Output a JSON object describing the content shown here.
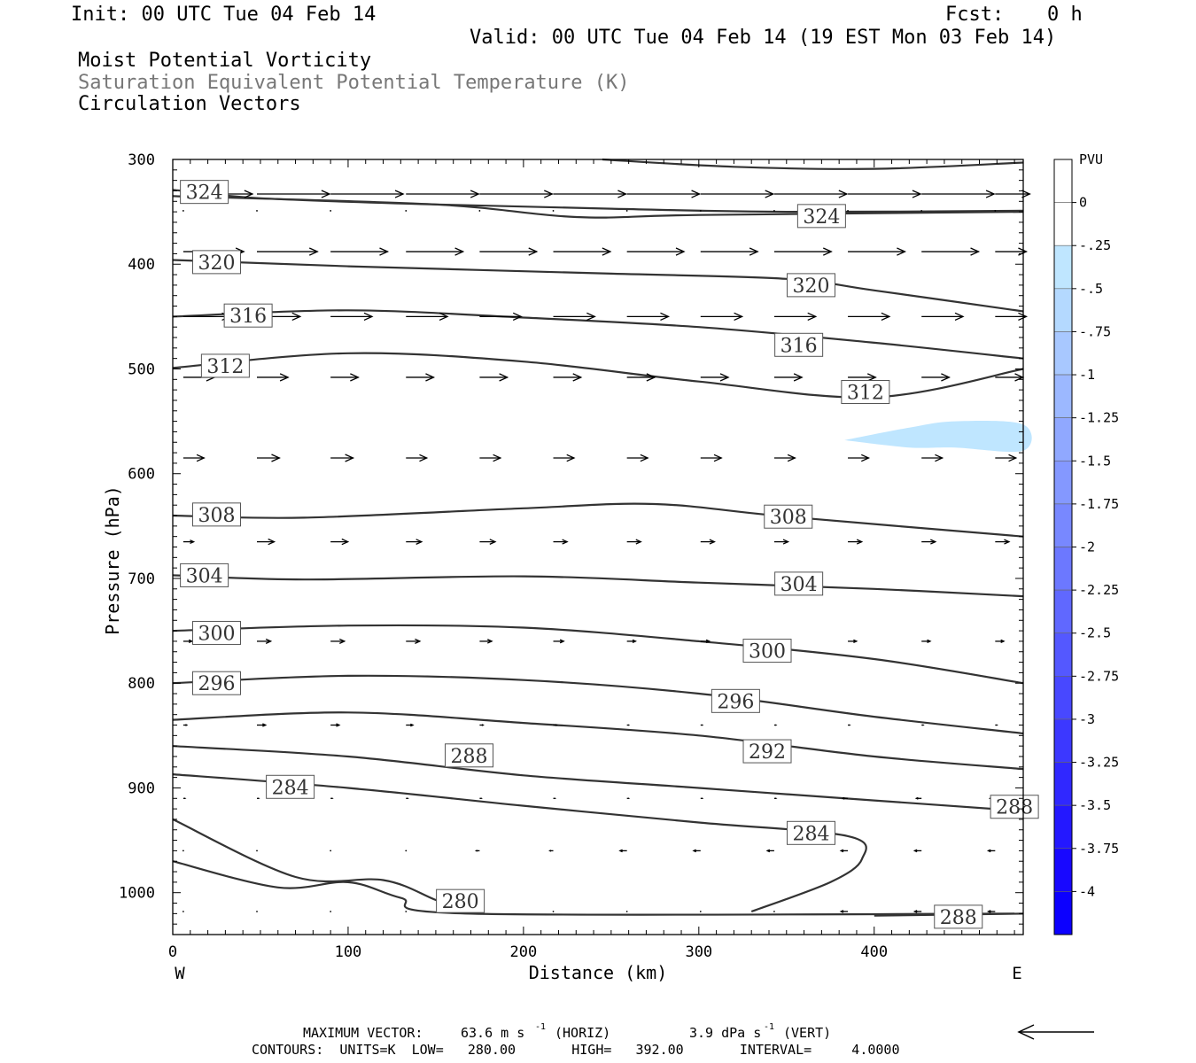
{
  "header": {
    "init": "Init: 00 UTC Tue 04 Feb 14",
    "fcst_label": "Fcst:",
    "fcst_value": "0 h",
    "valid": "Valid: 00 UTC Tue 04 Feb 14 (19 EST Mon 03 Feb 14)",
    "field1": "Moist Potential Vorticity",
    "field2": "Saturation Equivalent Potential Temperature (K)",
    "field3": "Circulation Vectors"
  },
  "footer": {
    "max_vector_label": "MAXIMUM VECTOR:",
    "max_vector_horiz": "63.6 m s",
    "horiz_tag": "(HORIZ)",
    "max_vector_vert": "3.9 dPa s",
    "vert_tag": "(VERT)",
    "exponent": "-1",
    "contours": "CONTOURS:  UNITS=K  LOW=   280.00       HIGH=   392.00       INTERVAL=     4.0000"
  },
  "colors": {
    "contour": "#333333",
    "pv_fill": "#bfe6ff",
    "frame": "#000000"
  },
  "chart_data": {
    "type": "contour",
    "xlabel": "Distance (km)",
    "ylabel": "Pressure (hPa)",
    "xlim": [
      0,
      485
    ],
    "ylim": [
      300,
      1040
    ],
    "y_reversed": true,
    "x_ticks": [
      0,
      100,
      200,
      300,
      400
    ],
    "y_ticks": [
      300,
      400,
      500,
      600,
      700,
      800,
      900,
      1000
    ],
    "x_end_labels": {
      "left": "W",
      "right": "E"
    },
    "contour_series": [
      {
        "label": "324",
        "points": [
          [
            0,
            329
          ],
          [
            50,
            337
          ],
          [
            150,
            343
          ],
          [
            250,
            347
          ],
          [
            350,
            350
          ],
          [
            485,
            349
          ]
        ]
      },
      {
        "label": "",
        "points": [
          [
            245,
            300
          ],
          [
            320,
            307
          ],
          [
            400,
            309
          ],
          [
            485,
            303
          ]
        ]
      },
      {
        "label": "",
        "points": [
          [
            0,
            335
          ],
          [
            150,
            343
          ],
          [
            230,
            355
          ],
          [
            300,
            353
          ],
          [
            485,
            350
          ]
        ]
      },
      {
        "label": "320",
        "points": [
          [
            0,
            396
          ],
          [
            100,
            402
          ],
          [
            250,
            409
          ],
          [
            350,
            414
          ],
          [
            400,
            425
          ],
          [
            485,
            445
          ]
        ]
      },
      {
        "label": "316",
        "points": [
          [
            0,
            450
          ],
          [
            100,
            444
          ],
          [
            200,
            451
          ],
          [
            300,
            460
          ],
          [
            400,
            475
          ],
          [
            485,
            490
          ]
        ]
      },
      {
        "label": "312",
        "points": [
          [
            0,
            499
          ],
          [
            100,
            485
          ],
          [
            200,
            493
          ],
          [
            300,
            512
          ],
          [
            400,
            527
          ],
          [
            485,
            500
          ]
        ]
      },
      {
        "label": "308",
        "points": [
          [
            0,
            640
          ],
          [
            75,
            642
          ],
          [
            200,
            633
          ],
          [
            275,
            629
          ],
          [
            350,
            641
          ],
          [
            485,
            660
          ]
        ]
      },
      {
        "label": "304",
        "points": [
          [
            0,
            697
          ],
          [
            75,
            701
          ],
          [
            200,
            698
          ],
          [
            300,
            704
          ],
          [
            400,
            710
          ],
          [
            485,
            717
          ]
        ]
      },
      {
        "label": "300",
        "points": [
          [
            0,
            750
          ],
          [
            100,
            745
          ],
          [
            200,
            747
          ],
          [
            300,
            760
          ],
          [
            400,
            777
          ],
          [
            485,
            800
          ]
        ]
      },
      {
        "label": "296",
        "points": [
          [
            0,
            800
          ],
          [
            100,
            793
          ],
          [
            200,
            797
          ],
          [
            300,
            810
          ],
          [
            400,
            832
          ],
          [
            485,
            848
          ]
        ]
      },
      {
        "label": "292",
        "points": [
          [
            0,
            835
          ],
          [
            100,
            828
          ],
          [
            200,
            838
          ],
          [
            300,
            850
          ],
          [
            400,
            870
          ],
          [
            485,
            882
          ]
        ]
      },
      {
        "label": "288",
        "points": [
          [
            0,
            860
          ],
          [
            100,
            870
          ],
          [
            200,
            888
          ],
          [
            300,
            900
          ],
          [
            400,
            912
          ],
          [
            485,
            922
          ]
        ]
      },
      {
        "label": "284",
        "points": [
          [
            0,
            887
          ],
          [
            100,
            900
          ],
          [
            200,
            917
          ],
          [
            300,
            933
          ],
          [
            385,
            946
          ],
          [
            393,
            968
          ],
          [
            375,
            990
          ],
          [
            330,
            1018
          ]
        ]
      },
      {
        "label": "280",
        "points": [
          [
            0,
            970
          ],
          [
            60,
            995
          ],
          [
            100,
            990
          ],
          [
            130,
            1005
          ],
          [
            170,
            1020
          ],
          [
            480,
            1020
          ]
        ]
      },
      {
        "label": "",
        "points": [
          [
            0,
            930
          ],
          [
            70,
            985
          ],
          [
            120,
            988
          ],
          [
            150,
            1007
          ],
          [
            170,
            1020
          ]
        ]
      },
      {
        "label": "288",
        "points": [
          [
            400,
            1022
          ],
          [
            485,
            1020
          ]
        ]
      }
    ],
    "contour_labels": [
      {
        "text": "324",
        "x": 18,
        "y": 331
      },
      {
        "text": "324",
        "x": 370,
        "y": 354
      },
      {
        "text": "320",
        "x": 25,
        "y": 398
      },
      {
        "text": "320",
        "x": 364,
        "y": 420
      },
      {
        "text": "316",
        "x": 43,
        "y": 449
      },
      {
        "text": "316",
        "x": 357,
        "y": 477
      },
      {
        "text": "312",
        "x": 30,
        "y": 497
      },
      {
        "text": "312",
        "x": 395,
        "y": 522
      },
      {
        "text": "308",
        "x": 25,
        "y": 639
      },
      {
        "text": "308",
        "x": 351,
        "y": 641
      },
      {
        "text": "304",
        "x": 18,
        "y": 697
      },
      {
        "text": "304",
        "x": 357,
        "y": 705
      },
      {
        "text": "300",
        "x": 25,
        "y": 752
      },
      {
        "text": "300",
        "x": 339,
        "y": 769
      },
      {
        "text": "296",
        "x": 25,
        "y": 800
      },
      {
        "text": "296",
        "x": 321,
        "y": 817
      },
      {
        "text": "292",
        "x": 339,
        "y": 865
      },
      {
        "text": "288",
        "x": 169,
        "y": 869
      },
      {
        "text": "288",
        "x": 480,
        "y": 918
      },
      {
        "text": "284",
        "x": 67,
        "y": 899
      },
      {
        "text": "284",
        "x": 364,
        "y": 943
      },
      {
        "text": "280",
        "x": 164,
        "y": 1008
      },
      {
        "text": "288",
        "x": 448,
        "y": 1023
      }
    ],
    "pv_fill": [
      [
        383,
        568
      ],
      [
        420,
        556
      ],
      [
        446,
        550
      ],
      [
        485,
        553
      ],
      [
        485,
        578
      ],
      [
        446,
        575
      ],
      [
        420,
        575
      ],
      [
        383,
        568
      ]
    ],
    "vectors": {
      "x": [
        6,
        48,
        90,
        133,
        175,
        217,
        259,
        301,
        343,
        385,
        427,
        469
      ],
      "rows": [
        {
          "p": 333,
          "u": [
            40,
            42,
            42,
            42,
            42,
            42,
            42,
            42,
            42,
            42,
            42,
            20
          ]
        },
        {
          "p": 349,
          "u": [
            0,
            0,
            0,
            0,
            0,
            0,
            0,
            0,
            0,
            0,
            0,
            0
          ]
        },
        {
          "p": 388,
          "u": [
            35,
            35,
            33,
            33,
            33,
            33,
            33,
            33,
            33,
            33,
            33,
            18
          ]
        },
        {
          "p": 450,
          "u": [
            27,
            25,
            24,
            24,
            24,
            24,
            24,
            24,
            24,
            24,
            24,
            18
          ]
        },
        {
          "p": 508,
          "u": [
            18,
            18,
            16,
            16,
            16,
            16,
            16,
            16,
            16,
            16,
            16,
            16
          ]
        },
        {
          "p": 585,
          "u": [
            12,
            13,
            13,
            12,
            12,
            12,
            12,
            12,
            12,
            12,
            12,
            12
          ]
        },
        {
          "p": 665,
          "u": [
            6,
            10,
            10,
            9,
            9,
            8,
            8,
            8,
            8,
            8,
            8,
            8
          ]
        },
        {
          "p": 760,
          "u": [
            5,
            8,
            8,
            8,
            7,
            6,
            5,
            5,
            5,
            5,
            5,
            5
          ]
        },
        {
          "p": 840,
          "u": [
            2,
            5,
            5,
            4,
            2,
            2,
            1,
            1,
            1,
            1,
            1,
            1
          ]
        },
        {
          "p": 910,
          "u": [
            1,
            1,
            1,
            1,
            1,
            1,
            1,
            1,
            1,
            -3,
            -3,
            -3
          ]
        },
        {
          "p": 960,
          "u": [
            0,
            0,
            0,
            0,
            -2,
            -2,
            -4,
            -4,
            -4,
            -4,
            -4,
            -4
          ]
        },
        {
          "p": 1018,
          "u": [
            0,
            0,
            0,
            0,
            0,
            0,
            0,
            0,
            0,
            -4,
            -4,
            -4
          ]
        }
      ]
    },
    "colorbar": {
      "title": "PVU",
      "labels": [
        "0",
        "-.25",
        "-.5",
        "-.75",
        "-1",
        "-1.25",
        "-1.5",
        "-1.75",
        "-2",
        "-2.25",
        "-2.5",
        "-2.75",
        "-3",
        "-3.25",
        "-3.5",
        "-3.75",
        "-4"
      ],
      "colors": [
        "#ffffff",
        "#ffffff",
        "#bfe6ff",
        "#b4d9ff",
        "#a8c8ff",
        "#9cb8ff",
        "#90a8ff",
        "#8498ff",
        "#7888ff",
        "#6c78ff",
        "#6068ff",
        "#5458ff",
        "#4848ff",
        "#3c38ff",
        "#3028ff",
        "#2418ff",
        "#1808ff",
        "#0c00ff"
      ]
    },
    "reference_vector": {
      "direction": "west"
    }
  }
}
